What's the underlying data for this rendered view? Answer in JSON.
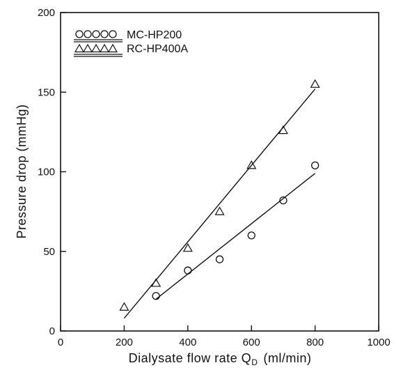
{
  "chart_data": {
    "type": "scatter",
    "xlabel": "Dialysate flow rate Q",
    "xlabel_sub": "D",
    "xlabel_unit": "(ml/min)",
    "ylabel": "Pressure drop (mmHg)",
    "xlim": [
      0,
      1000
    ],
    "ylim": [
      0,
      200
    ],
    "x_ticks": [
      0,
      200,
      400,
      600,
      800,
      1000
    ],
    "y_ticks": [
      0,
      50,
      100,
      150,
      200
    ],
    "x_tick_labels": [
      "0",
      "200",
      "400",
      "600",
      "800",
      "1000"
    ],
    "y_tick_labels": [
      "0",
      "50",
      "100",
      "150",
      "200"
    ],
    "grid": false,
    "legend_position": "top-left",
    "series": [
      {
        "name": "MC-HP200",
        "marker": "circle",
        "x": [
          300,
          400,
          500,
          600,
          700,
          800
        ],
        "y": [
          22,
          38,
          45,
          60,
          82,
          104
        ],
        "fit_line": {
          "x": [
            300,
            800
          ],
          "y": [
            20,
            99
          ]
        }
      },
      {
        "name": "RC-HP400A",
        "marker": "triangle",
        "x": [
          200,
          300,
          400,
          500,
          600,
          700,
          800
        ],
        "y": [
          15,
          30,
          52,
          75,
          104,
          126,
          155
        ],
        "fit_line": {
          "x": [
            200,
            800
          ],
          "y": [
            8,
            152
          ]
        }
      }
    ]
  }
}
